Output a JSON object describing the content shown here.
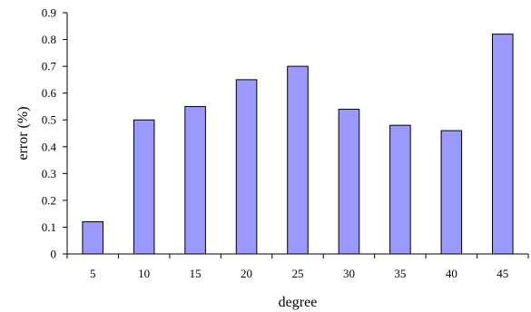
{
  "chart_data": {
    "type": "bar",
    "categories": [
      "5",
      "10",
      "15",
      "20",
      "25",
      "30",
      "35",
      "40",
      "45"
    ],
    "values": [
      0.12,
      0.5,
      0.55,
      0.65,
      0.7,
      0.54,
      0.48,
      0.46,
      0.82
    ],
    "xlabel": "degree",
    "ylabel": "error (%)",
    "ylim": [
      0,
      0.9
    ],
    "yticks": [
      "0",
      "0.1",
      "0.2",
      "0.3",
      "0.4",
      "0.5",
      "0.6",
      "0.7",
      "0.8",
      "0.9"
    ],
    "grid": false,
    "legend": "none",
    "colors": {
      "bar_fill": "#9999ff",
      "bar_stroke": "#000000",
      "axis": "#000000"
    }
  }
}
